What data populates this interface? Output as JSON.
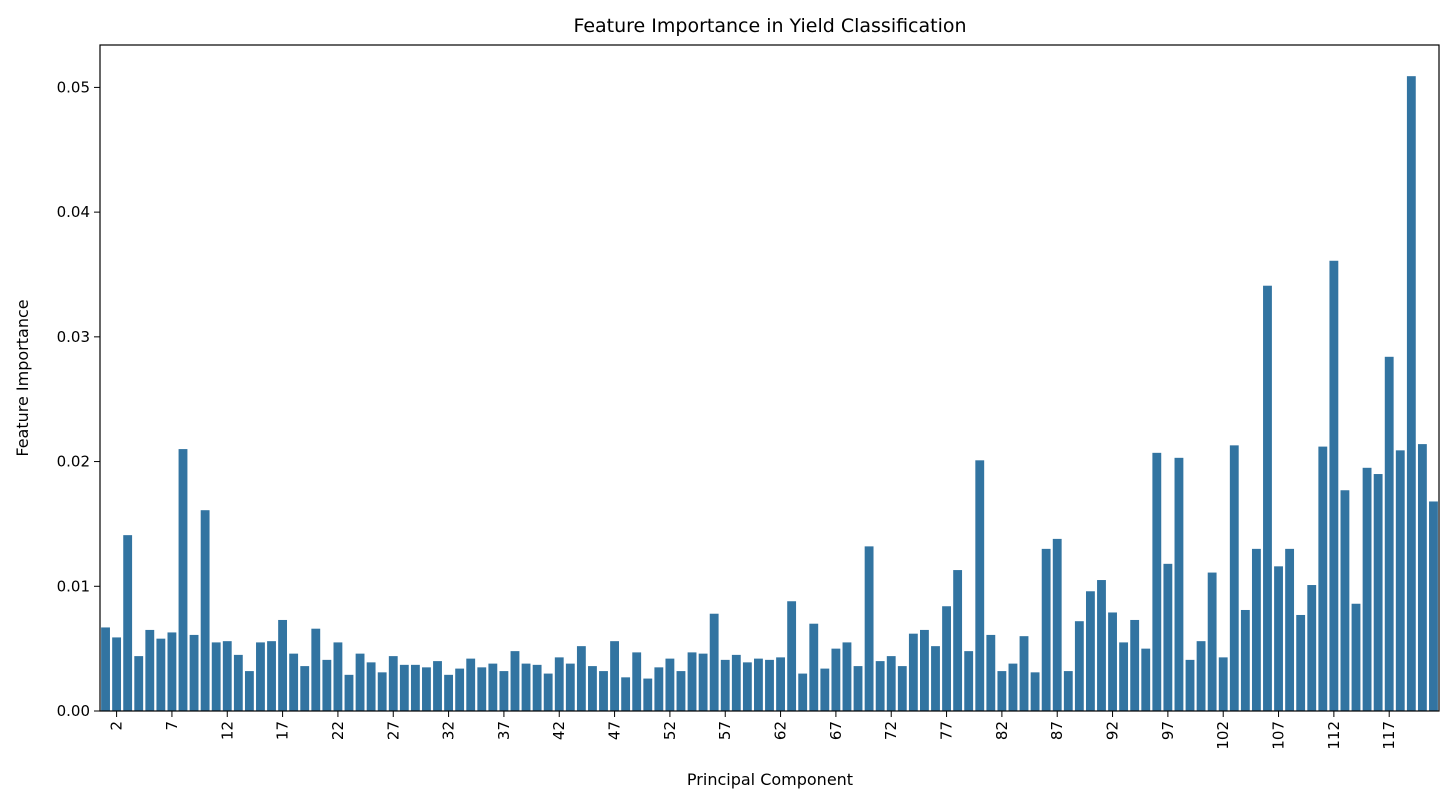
{
  "chart_data": {
    "type": "bar",
    "title": "Feature Importance in Yield Classification",
    "xlabel": "Principal Component",
    "ylabel": "Feature Importance",
    "bar_color": "#3274a1",
    "ylim": [
      0,
      0.0534
    ],
    "yticks": [
      0.0,
      0.01,
      0.02,
      0.03,
      0.04,
      0.05
    ],
    "ytick_labels": [
      "0.00",
      "0.01",
      "0.02",
      "0.03",
      "0.04",
      "0.05"
    ],
    "xtick_labels": [
      "2",
      "7",
      "12",
      "17",
      "22",
      "27",
      "32",
      "37",
      "42",
      "47",
      "52",
      "57",
      "62",
      "67",
      "72",
      "77",
      "82",
      "87",
      "92",
      "97",
      "102",
      "107",
      "112",
      "117"
    ],
    "grid": false,
    "categories": [
      1,
      2,
      3,
      4,
      5,
      6,
      7,
      8,
      9,
      10,
      11,
      12,
      13,
      14,
      15,
      16,
      17,
      18,
      19,
      20,
      21,
      22,
      23,
      24,
      25,
      26,
      27,
      28,
      29,
      30,
      31,
      32,
      33,
      34,
      35,
      36,
      37,
      38,
      39,
      40,
      41,
      42,
      43,
      44,
      45,
      46,
      47,
      48,
      49,
      50,
      51,
      52,
      53,
      54,
      55,
      56,
      57,
      58,
      59,
      60,
      61,
      62,
      63,
      64,
      65,
      66,
      67,
      68,
      69,
      70,
      71,
      72,
      73,
      74,
      75,
      76,
      77,
      78,
      79,
      80,
      81,
      82,
      83,
      84,
      85,
      86,
      87,
      88,
      89,
      90,
      91,
      92,
      93,
      94,
      95,
      96,
      97,
      98,
      99,
      100,
      101,
      102,
      103,
      104,
      105,
      106,
      107,
      108,
      109,
      110,
      111,
      112,
      113,
      114,
      115,
      116,
      117,
      118,
      119,
      120,
      121
    ],
    "values": [
      0.0067,
      0.0059,
      0.0141,
      0.0044,
      0.0065,
      0.0058,
      0.0063,
      0.021,
      0.0061,
      0.0161,
      0.0055,
      0.0056,
      0.0045,
      0.0032,
      0.0055,
      0.0056,
      0.0073,
      0.0046,
      0.0036,
      0.0066,
      0.0041,
      0.0055,
      0.0029,
      0.0046,
      0.0039,
      0.0031,
      0.0044,
      0.0037,
      0.0037,
      0.0035,
      0.004,
      0.0029,
      0.0034,
      0.0042,
      0.0035,
      0.0038,
      0.0032,
      0.0048,
      0.0038,
      0.0037,
      0.003,
      0.0043,
      0.0038,
      0.0052,
      0.0036,
      0.0032,
      0.0056,
      0.0027,
      0.0047,
      0.0026,
      0.0035,
      0.0042,
      0.0032,
      0.0047,
      0.0046,
      0.0078,
      0.0041,
      0.0045,
      0.0039,
      0.0042,
      0.0041,
      0.0043,
      0.0088,
      0.003,
      0.007,
      0.0034,
      0.005,
      0.0055,
      0.0036,
      0.0132,
      0.004,
      0.0044,
      0.0036,
      0.0062,
      0.0065,
      0.0052,
      0.0084,
      0.0113,
      0.0048,
      0.0201,
      0.0061,
      0.0032,
      0.0038,
      0.006,
      0.0031,
      0.013,
      0.0138,
      0.0032,
      0.0072,
      0.0096,
      0.0105,
      0.0079,
      0.0055,
      0.0073,
      0.005,
      0.0207,
      0.0118,
      0.0203,
      0.0041,
      0.0056,
      0.0111,
      0.0043,
      0.0213,
      0.0081,
      0.013,
      0.0341,
      0.0116,
      0.013,
      0.0077,
      0.0101,
      0.0212,
      0.0361,
      0.0177,
      0.0086,
      0.0195,
      0.019,
      0.0284,
      0.0209,
      0.0509,
      0.0214,
      0.0168
    ]
  }
}
